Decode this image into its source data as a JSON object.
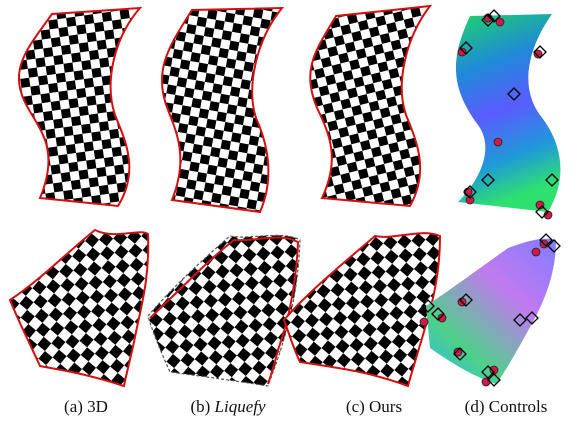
{
  "captions": {
    "a_label": "(a) 3D",
    "b_prefix": "(b) ",
    "b_name": "Liquefy",
    "c_label": "(c) Ours",
    "d_label": "(d) Controls"
  },
  "colors": {
    "outline": "#d21010",
    "check_dark": "#000000",
    "check_light": "#ffffff",
    "top_gradient": [
      "#1fd36a",
      "#1f8ad8",
      "#5a5cff",
      "#1f9ad8",
      "#2ee070"
    ],
    "bottom_gradient": [
      "#8a7cff",
      "#c07af0",
      "#4fd08a",
      "#2bc0d8"
    ],
    "control_circle": "#cc1a4a",
    "control_diamond": "#000000"
  },
  "icons": {
    "circle_marker": "circle-control-icon",
    "diamond_marker": "diamond-control-icon"
  }
}
